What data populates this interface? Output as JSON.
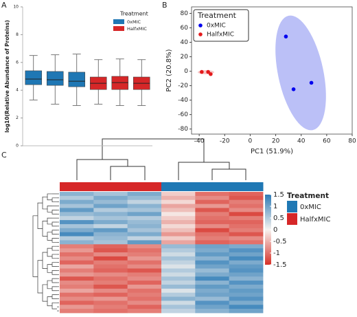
{
  "chart_data": [
    {
      "type": "box",
      "panel": "A",
      "ylabel": "log10(Relative Abundance of Proteins)",
      "ylim": [
        0,
        10
      ],
      "yticks": [
        0,
        2,
        4,
        6,
        8,
        10
      ],
      "legend_title": "Treatment",
      "legend": "upper right",
      "series": [
        {
          "name": "0xMIC",
          "color": "#1f77b4",
          "boxes": [
            {
              "min": 3.3,
              "q1": 4.4,
              "median": 4.8,
              "q3": 5.4,
              "max": 6.5
            },
            {
              "min": 3.0,
              "q1": 4.35,
              "median": 4.75,
              "q3": 5.35,
              "max": 6.55
            },
            {
              "min": 2.9,
              "q1": 4.25,
              "median": 4.65,
              "q3": 5.3,
              "max": 6.6
            }
          ]
        },
        {
          "name": "HalfxMIC",
          "color": "#d62728",
          "boxes": [
            {
              "min": 3.0,
              "q1": 4.05,
              "median": 4.5,
              "q3": 4.95,
              "max": 6.2
            },
            {
              "min": 2.9,
              "q1": 4.05,
              "median": 4.55,
              "q3": 5.0,
              "max": 6.25
            },
            {
              "min": 2.9,
              "q1": 4.05,
              "median": 4.5,
              "q3": 4.95,
              "max": 6.2
            }
          ]
        }
      ]
    },
    {
      "type": "scatter",
      "panel": "B",
      "xlabel": "PC1 (51.9%)",
      "ylabel": "PC2 (20.8%)",
      "xlim": [
        -46,
        80
      ],
      "ylim": [
        -87,
        89
      ],
      "xticks": [
        -40,
        -20,
        0,
        20,
        40,
        60,
        80
      ],
      "yticks": [
        -80,
        -60,
        -40,
        -20,
        0,
        20,
        40,
        60,
        80
      ],
      "legend_title": "Treatment",
      "legend": "upper left",
      "series": [
        {
          "name": "0xMIC",
          "color": "#0000ee",
          "x": [
            28,
            34,
            48
          ],
          "y": [
            48,
            -25,
            -16
          ]
        },
        {
          "name": "HalfxMIC",
          "color": "#e41a1c",
          "x": [
            -38,
            -33,
            -31
          ],
          "y": [
            -1,
            -1,
            -4
          ]
        }
      ]
    },
    {
      "type": "heatmap",
      "panel": "C",
      "clim": [
        -1.5,
        1.5
      ],
      "cticks": [
        1.5,
        1,
        0.5,
        0,
        -0.5,
        -1,
        -1.5
      ],
      "colormap": [
        "#d73027",
        "#f7f3f0",
        "#2c7bb6"
      ],
      "legend_title": "Treatment",
      "groups": [
        {
          "name": "0xMIC",
          "color": "#1f78b4"
        },
        {
          "name": "HalfxMIC",
          "color": "#d62728"
        }
      ],
      "column_groups": [
        "HalfxMIC",
        "HalfxMIC",
        "HalfxMIC",
        "0xMIC",
        "0xMIC",
        "0xMIC"
      ],
      "values": [
        [
          0.8,
          0.6,
          0.9,
          -0.3,
          -1.0,
          -1.1
        ],
        [
          0.5,
          0.9,
          0.7,
          -0.5,
          -0.8,
          -1.2
        ],
        [
          0.9,
          0.7,
          0.4,
          -0.2,
          -1.1,
          -0.9
        ],
        [
          0.6,
          1.0,
          0.8,
          -0.6,
          -0.7,
          -1.0
        ],
        [
          1.1,
          0.5,
          0.6,
          -0.4,
          -1.2,
          -0.8
        ],
        [
          0.7,
          0.8,
          1.0,
          -0.1,
          -0.9,
          -1.3
        ],
        [
          0.4,
          0.6,
          0.5,
          -0.3,
          -1.0,
          -0.9
        ],
        [
          1.2,
          0.9,
          0.7,
          -0.5,
          -1.1,
          -1.1
        ],
        [
          0.6,
          0.4,
          0.8,
          -0.2,
          -0.8,
          -1.0
        ],
        [
          0.9,
          1.1,
          0.6,
          -0.4,
          -1.3,
          -0.9
        ],
        [
          1.3,
          0.8,
          0.9,
          -0.7,
          -1.0,
          -1.2
        ],
        [
          0.5,
          0.7,
          0.4,
          -0.3,
          -0.9,
          -0.8
        ],
        [
          0.8,
          0.6,
          1.1,
          -0.6,
          -1.1,
          -1.0
        ],
        [
          -0.9,
          -1.1,
          -0.8,
          0.7,
          1.0,
          0.9
        ],
        [
          -0.7,
          -1.2,
          -1.0,
          0.5,
          0.9,
          1.2
        ],
        [
          -1.0,
          -0.8,
          -0.9,
          0.3,
          1.1,
          1.0
        ],
        [
          -0.8,
          -1.3,
          -0.7,
          0.6,
          0.8,
          1.3
        ],
        [
          -1.1,
          -0.9,
          -1.0,
          0.4,
          1.2,
          0.9
        ],
        [
          -0.6,
          -1.0,
          -0.8,
          0.2,
          1.0,
          1.1
        ],
        [
          -0.9,
          -1.1,
          -1.2,
          0.5,
          0.7,
          1.2
        ],
        [
          -0.7,
          -0.8,
          -0.9,
          0.3,
          0.9,
          1.0
        ],
        [
          -1.2,
          -1.0,
          -0.8,
          0.6,
          1.3,
          0.8
        ],
        [
          -0.8,
          -0.9,
          -1.1,
          0.4,
          0.8,
          1.2
        ],
        [
          -0.9,
          -1.2,
          -0.7,
          0.7,
          1.1,
          0.9
        ],
        [
          -0.6,
          -0.8,
          -1.0,
          0.2,
          0.9,
          1.1
        ],
        [
          -1.0,
          -1.1,
          -0.9,
          0.5,
          1.0,
          1.0
        ],
        [
          -0.8,
          -0.7,
          -1.0,
          0.8,
          0.7,
          1.2
        ],
        [
          -1.1,
          -1.0,
          -0.8,
          0.3,
          1.2,
          0.9
        ],
        [
          -0.7,
          -0.9,
          -1.1,
          0.6,
          1.0,
          1.3
        ],
        [
          -0.9,
          -1.0,
          -0.9,
          0.4,
          0.8,
          1.0
        ]
      ]
    }
  ]
}
